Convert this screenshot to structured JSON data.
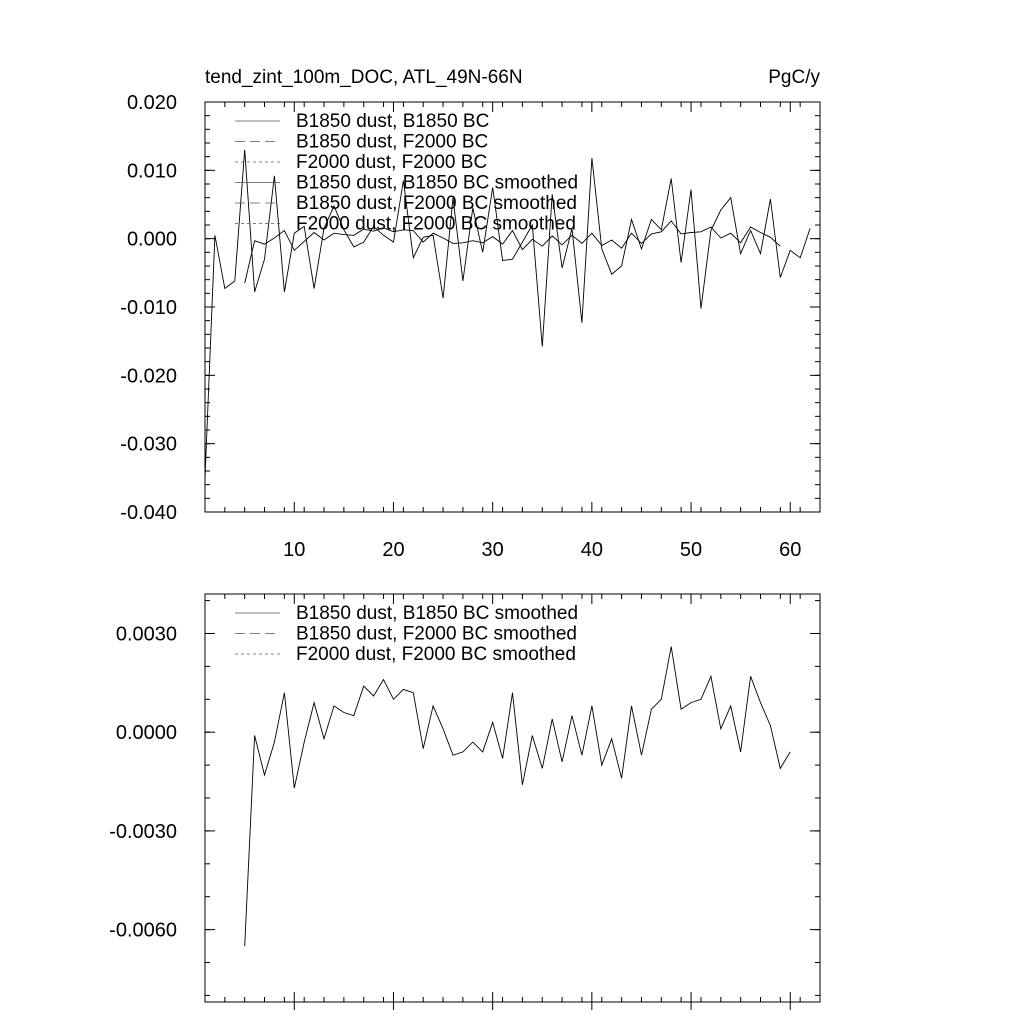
{
  "chart_data": [
    {
      "type": "line",
      "title_left": "tend_zint_100m_DOC, ATL_49N-66N",
      "title_right": "PgC/y",
      "xlim": [
        1,
        63
      ],
      "ylim": [
        -0.04,
        0.02
      ],
      "xticks": [
        10,
        20,
        30,
        40,
        50,
        60
      ],
      "xtick_labels": [
        "10",
        "20",
        "30",
        "40",
        "50",
        "60"
      ],
      "yticks": [
        -0.04,
        -0.03,
        -0.02,
        -0.01,
        0.0,
        0.01,
        0.02
      ],
      "ytick_labels": [
        "-0.040",
        "-0.030",
        "-0.020",
        "-0.010",
        "0.000",
        "0.010",
        "0.020"
      ],
      "legend_position": "top-left",
      "legend": [
        {
          "label": "B1850 dust, B1850 BC",
          "dash": ""
        },
        {
          "label": "B1850 dust, F2000 BC",
          "dash": "10,5"
        },
        {
          "label": "F2000 dust, F2000 BC",
          "dash": "3,3"
        },
        {
          "label": "B1850 dust, B1850 BC smoothed",
          "dash": ""
        },
        {
          "label": "B1850 dust, F2000 BC smoothed",
          "dash": "10,5"
        },
        {
          "label": "F2000 dust, F2000 BC smoothed",
          "dash": "3,3"
        }
      ],
      "series": [
        {
          "name": "B1850 dust, B1850 BC",
          "dash": "",
          "x": [
            1,
            2,
            3,
            4,
            5,
            6,
            7,
            8,
            9,
            10,
            11,
            12,
            13,
            14,
            15,
            16,
            17,
            18,
            19,
            20,
            21,
            22,
            23,
            24,
            25,
            26,
            27,
            28,
            29,
            30,
            31,
            32,
            33,
            34,
            35,
            36,
            37,
            38,
            39,
            40,
            41,
            42,
            43,
            44,
            45,
            46,
            47,
            48,
            49,
            50,
            51,
            52,
            53,
            54,
            55,
            56,
            57,
            58,
            59,
            60,
            61,
            62
          ],
          "values": [
            -0.035,
            0.0005,
            -0.0073,
            -0.0062,
            0.013,
            -0.0078,
            -0.003,
            0.0092,
            -0.0078,
            0.0008,
            0.0018,
            -0.0073,
            0.0015,
            0.0048,
            0.0013,
            -0.0012,
            -0.0005,
            0.0018,
            0.0005,
            -0.0005,
            0.0085,
            -0.0028,
            0.0002,
            0.0005,
            -0.0087,
            0.006,
            -0.0062,
            0.0045,
            -0.002,
            0.0075,
            -0.0032,
            -0.003,
            -0.0005,
            0.002,
            -0.0158,
            0.0065,
            -0.0043,
            0.0015,
            -0.0123,
            0.0118,
            -0.0015,
            -0.0052,
            -0.004,
            0.0028,
            -0.0015,
            0.0028,
            0.0013,
            0.0088,
            -0.0035,
            0.0072,
            -0.0102,
            0.0012,
            0.0042,
            0.006,
            -0.0022,
            0.0012,
            -0.0022,
            0.0058,
            -0.0057,
            -0.0017,
            -0.0028,
            0.0015
          ]
        },
        {
          "name": "B1850 dust, B1850 BC smoothed",
          "dash": "",
          "x": [
            5,
            6,
            7,
            8,
            9,
            10,
            11,
            12,
            13,
            14,
            15,
            16,
            17,
            18,
            19,
            20,
            21,
            22,
            23,
            24,
            25,
            26,
            27,
            28,
            29,
            30,
            31,
            32,
            33,
            34,
            35,
            36,
            37,
            38,
            39,
            40,
            41,
            42,
            43,
            44,
            45,
            46,
            47,
            48,
            49,
            50,
            51,
            52,
            53,
            54,
            55,
            56,
            57,
            58,
            59
          ],
          "values": [
            -0.0065,
            -0.0003,
            -0.0008,
            0.0001,
            0.0012,
            -0.0017,
            -0.0004,
            0.0009,
            -0.0002,
            0.0008,
            0.0006,
            0.0005,
            0.0014,
            0.0011,
            0.0016,
            0.001,
            0.0013,
            0.0012,
            -0.0005,
            0.0008,
            0.0001,
            -0.0007,
            -0.0006,
            -0.0003,
            -0.0006,
            0.0003,
            -0.0008,
            0.0012,
            -0.0016,
            -0.0001,
            -0.0011,
            0.0004,
            -0.0009,
            0.0005,
            -0.0007,
            0.0008,
            -0.001,
            -0.0002,
            -0.0014,
            0.0008,
            -0.0007,
            0.0007,
            0.001,
            0.0026,
            0.0007,
            0.0009,
            0.001,
            0.0017,
            0.0001,
            0.0008,
            -0.0006,
            0.0017,
            0.0009,
            0.0002,
            -0.0011
          ]
        }
      ]
    },
    {
      "type": "line",
      "xlim": [
        1,
        63
      ],
      "ylim": [
        -0.0082,
        0.0042
      ],
      "xticks": [
        10,
        20,
        30,
        40,
        50,
        60
      ],
      "yticks": [
        -0.006,
        -0.003,
        0.0,
        0.003
      ],
      "ytick_labels": [
        "-0.0060",
        "-0.0030",
        "0.0000",
        "0.0030"
      ],
      "legend_position": "top-left",
      "legend": [
        {
          "label": "B1850 dust, B1850 BC smoothed",
          "dash": ""
        },
        {
          "label": "B1850 dust, F2000 BC smoothed",
          "dash": "10,5"
        },
        {
          "label": "F2000 dust, F2000 BC smoothed",
          "dash": "3,3"
        }
      ],
      "series": [
        {
          "name": "B1850 dust, B1850 BC smoothed",
          "dash": "",
          "x": [
            5,
            6,
            7,
            8,
            9,
            10,
            11,
            12,
            13,
            14,
            15,
            16,
            17,
            18,
            19,
            20,
            21,
            22,
            23,
            24,
            25,
            26,
            27,
            28,
            29,
            30,
            31,
            32,
            33,
            34,
            35,
            36,
            37,
            38,
            39,
            40,
            41,
            42,
            43,
            44,
            45,
            46,
            47,
            48,
            49,
            50,
            51,
            52,
            53,
            54,
            55,
            56,
            57,
            58,
            59,
            60
          ],
          "values": [
            -0.0065,
            -0.0001,
            -0.0013,
            -0.0003,
            0.0012,
            -0.0017,
            -0.0003,
            0.0009,
            -0.0002,
            0.0008,
            0.0006,
            0.0005,
            0.0014,
            0.0011,
            0.0016,
            0.001,
            0.0013,
            0.0012,
            -0.0005,
            0.0008,
            0.0001,
            -0.0007,
            -0.0006,
            -0.0003,
            -0.0006,
            0.0003,
            -0.0008,
            0.0012,
            -0.0016,
            -0.0001,
            -0.0011,
            0.0004,
            -0.0009,
            0.0005,
            -0.0007,
            0.0008,
            -0.001,
            -0.0002,
            -0.0014,
            0.0008,
            -0.0007,
            0.0007,
            0.001,
            0.0026,
            0.0007,
            0.0009,
            0.001,
            0.0017,
            0.0001,
            0.0008,
            -0.0006,
            0.0017,
            0.0009,
            0.0002,
            -0.0011,
            -0.0006
          ]
        }
      ]
    }
  ]
}
